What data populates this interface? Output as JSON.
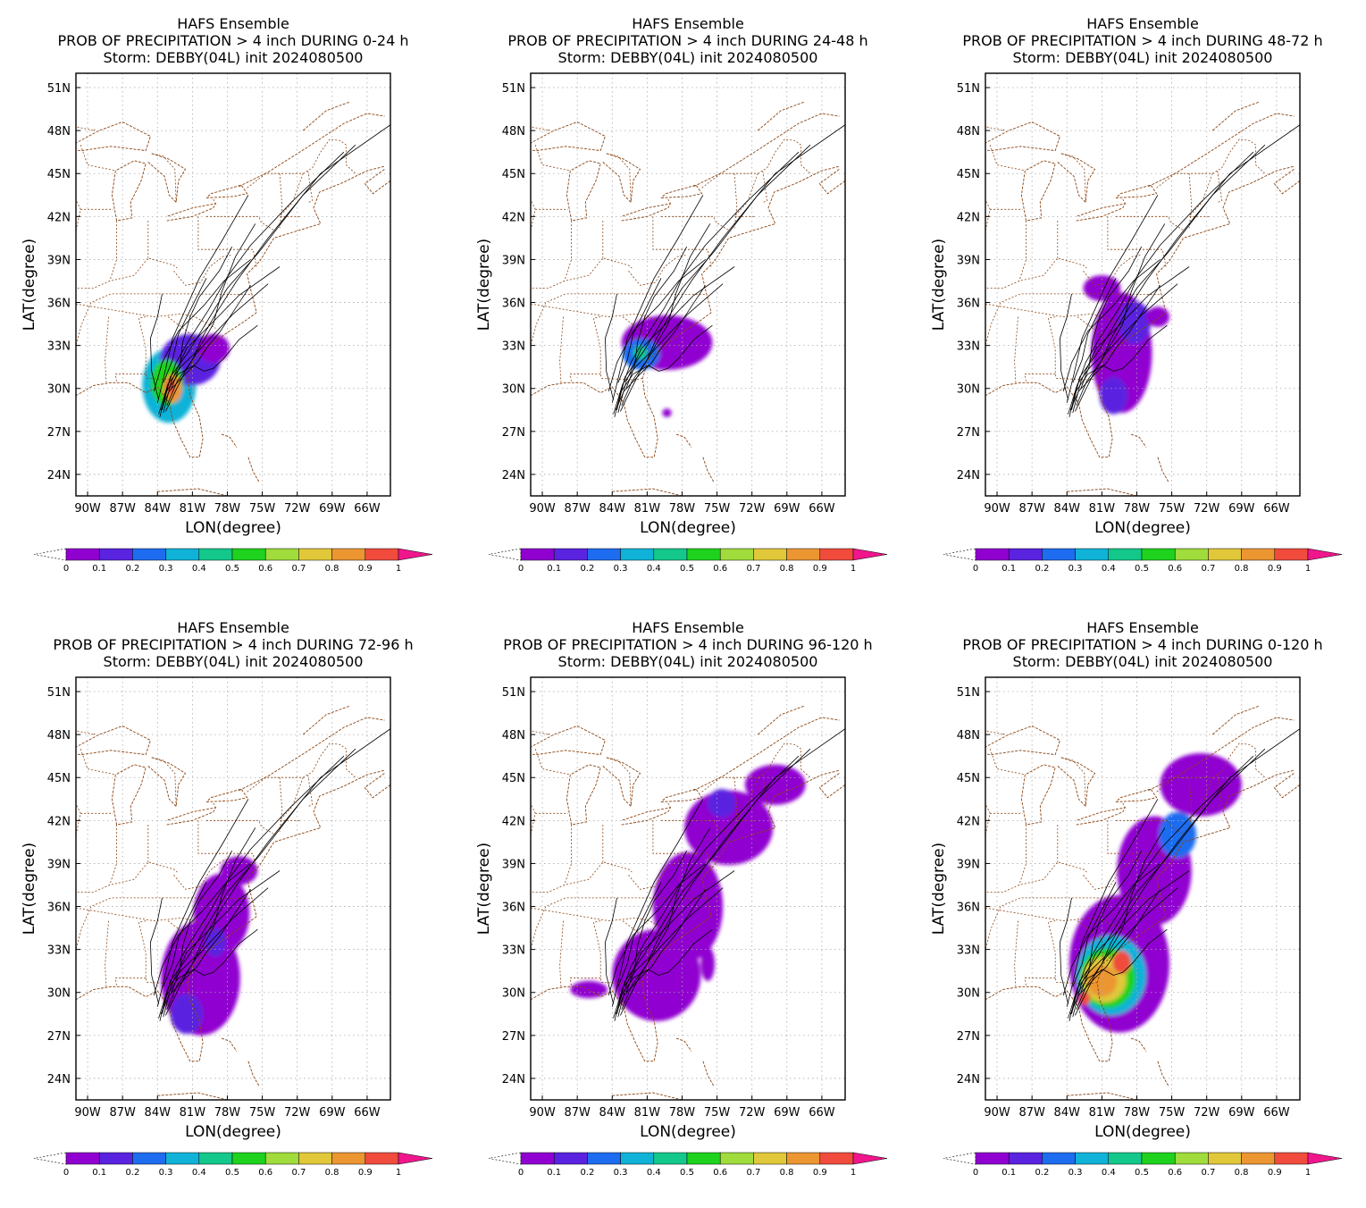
{
  "colors": {
    "bins": [
      "#9000d0",
      "#5a23e0",
      "#1e6cf0",
      "#10b2d8",
      "#14c88c",
      "#1ed21e",
      "#a0dc3c",
      "#e0c83a",
      "#ec9632",
      "#f04b3c",
      "#f0168c"
    ],
    "border": "#8b4513",
    "track": "#000000",
    "grid": "#aaaaaa"
  },
  "axes": {
    "xlabel": "LON(degree)",
    "ylabel": "LAT(degree)",
    "xlim": [
      -91,
      -64
    ],
    "ylim": [
      22.5,
      52
    ],
    "xticks": [
      -90,
      -87,
      -84,
      -81,
      -78,
      -75,
      -72,
      -69,
      -66
    ],
    "xtick_labels": [
      "90W",
      "87W",
      "84W",
      "81W",
      "78W",
      "75W",
      "72W",
      "69W",
      "66W"
    ],
    "yticks": [
      24,
      27,
      30,
      33,
      36,
      39,
      42,
      45,
      48,
      51
    ],
    "ytick_labels": [
      "24N",
      "27N",
      "30N",
      "33N",
      "36N",
      "39N",
      "42N",
      "45N",
      "48N",
      "51N"
    ],
    "grid": true
  },
  "colorbar": {
    "labels": [
      "0",
      "0.1",
      "0.2",
      "0.3",
      "0.4",
      "0.5",
      "0.6",
      "0.7",
      "0.8",
      "0.9",
      "1"
    ]
  },
  "chart_data": [
    {
      "type": "heatmap",
      "title": "HAFS Ensemble",
      "subtitle": "PROB OF PRECIPITATION > 4 inch DURING  0-24 h",
      "storm": "Storm: DEBBY(04L) init 2024080500",
      "blobs": [
        {
          "lon": -83.0,
          "lat": 30.2,
          "rx": 2.3,
          "ry": 2.6,
          "value": 0.3
        },
        {
          "lon": -81.2,
          "lat": 32.0,
          "rx": 2.6,
          "ry": 1.8,
          "value": 0.1
        },
        {
          "lon": -83.2,
          "lat": 30.4,
          "rx": 1.4,
          "ry": 1.6,
          "value": 0.5
        },
        {
          "lon": -82.7,
          "lat": 30.0,
          "rx": 0.8,
          "ry": 1.0,
          "value": 0.8
        },
        {
          "lon": -82.9,
          "lat": 30.1,
          "rx": 0.4,
          "ry": 0.5,
          "value": 0.9
        },
        {
          "lon": -79.2,
          "lat": 32.8,
          "rx": 1.4,
          "ry": 1.0,
          "value": 0.05
        }
      ]
    },
    {
      "type": "heatmap",
      "title": "HAFS Ensemble",
      "subtitle": "PROB OF PRECIPITATION > 4 inch DURING 24-48 h",
      "storm": "Storm: DEBBY(04L) init 2024080500",
      "blobs": [
        {
          "lon": -79.3,
          "lat": 33.2,
          "rx": 3.9,
          "ry": 1.9,
          "value": 0.05
        },
        {
          "lon": -81.5,
          "lat": 32.4,
          "rx": 1.6,
          "ry": 1.1,
          "value": 0.2
        },
        {
          "lon": -81.6,
          "lat": 32.5,
          "rx": 0.6,
          "ry": 0.5,
          "value": 0.4
        },
        {
          "lon": -79.3,
          "lat": 28.3,
          "rx": 0.4,
          "ry": 0.3,
          "value": 0.05
        }
      ]
    },
    {
      "type": "heatmap",
      "title": "HAFS Ensemble",
      "subtitle": "PROB OF PRECIPITATION > 4 inch DURING 48-72 h",
      "storm": "Storm: DEBBY(04L) init 2024080500",
      "blobs": [
        {
          "lon": -79.3,
          "lat": 32.5,
          "rx": 2.6,
          "ry": 4.2,
          "value": 0.05
        },
        {
          "lon": -78.2,
          "lat": 34.6,
          "rx": 1.4,
          "ry": 1.5,
          "value": 0.15
        },
        {
          "lon": -81.0,
          "lat": 37.0,
          "rx": 1.6,
          "ry": 0.9,
          "value": 0.05
        },
        {
          "lon": -80.0,
          "lat": 29.5,
          "rx": 1.2,
          "ry": 1.3,
          "value": 0.15
        },
        {
          "lon": -76.2,
          "lat": 35.0,
          "rx": 1.0,
          "ry": 0.7,
          "value": 0.05
        }
      ]
    },
    {
      "type": "heatmap",
      "title": "HAFS Ensemble",
      "subtitle": "PROB OF PRECIPITATION > 4 inch DURING 72-96 h",
      "storm": "Storm: DEBBY(04L) init 2024080500",
      "blobs": [
        {
          "lon": -80.3,
          "lat": 31.0,
          "rx": 3.4,
          "ry": 4.0,
          "value": 0.05
        },
        {
          "lon": -78.5,
          "lat": 35.5,
          "rx": 2.4,
          "ry": 2.8,
          "value": 0.05
        },
        {
          "lon": -77.0,
          "lat": 38.5,
          "rx": 1.6,
          "ry": 1.0,
          "value": 0.05
        },
        {
          "lon": -81.5,
          "lat": 28.5,
          "rx": 1.4,
          "ry": 1.4,
          "value": 0.15
        },
        {
          "lon": -79.0,
          "lat": 33.5,
          "rx": 0.9,
          "ry": 1.0,
          "value": 0.15
        }
      ]
    },
    {
      "type": "heatmap",
      "title": "HAFS Ensemble",
      "subtitle": "PROB OF PRECIPITATION > 4 inch DURING 96-120 h",
      "storm": "Storm: DEBBY(04L) init 2024080500",
      "blobs": [
        {
          "lon": -80.2,
          "lat": 31.2,
          "rx": 3.8,
          "ry": 3.2,
          "value": 0.05
        },
        {
          "lon": -77.5,
          "lat": 36.0,
          "rx": 3.0,
          "ry": 3.8,
          "value": 0.05
        },
        {
          "lon": -74.0,
          "lat": 41.5,
          "rx": 3.8,
          "ry": 2.6,
          "value": 0.05
        },
        {
          "lon": -70.0,
          "lat": 44.5,
          "rx": 2.6,
          "ry": 1.4,
          "value": 0.05
        },
        {
          "lon": -74.6,
          "lat": 43.2,
          "rx": 1.2,
          "ry": 1.0,
          "value": 0.15
        },
        {
          "lon": -86.0,
          "lat": 30.2,
          "rx": 1.6,
          "ry": 0.6,
          "value": 0.05
        },
        {
          "lon": -75.8,
          "lat": 32.0,
          "rx": 0.6,
          "ry": 1.2,
          "value": 0.05
        }
      ]
    },
    {
      "type": "heatmap",
      "title": "HAFS Ensemble",
      "subtitle": "PROB OF PRECIPITATION > 4 inch DURING 0-120 h",
      "storm": "Storm: DEBBY(04L) init 2024080500",
      "blobs": [
        {
          "lon": -79.5,
          "lat": 32.0,
          "rx": 4.3,
          "ry": 4.8,
          "value": 0.05
        },
        {
          "lon": -76.5,
          "lat": 38.5,
          "rx": 3.2,
          "ry": 3.8,
          "value": 0.05
        },
        {
          "lon": -72.5,
          "lat": 44.5,
          "rx": 3.5,
          "ry": 2.2,
          "value": 0.05
        },
        {
          "lon": -74.5,
          "lat": 41.0,
          "rx": 1.6,
          "ry": 1.6,
          "value": 0.2
        },
        {
          "lon": -80.2,
          "lat": 31.2,
          "rx": 3.0,
          "ry": 2.8,
          "value": 0.3
        },
        {
          "lon": -80.5,
          "lat": 31.0,
          "rx": 2.4,
          "ry": 2.1,
          "value": 0.5
        },
        {
          "lon": -80.8,
          "lat": 30.9,
          "rx": 1.9,
          "ry": 1.6,
          "value": 0.75
        },
        {
          "lon": -81.0,
          "lat": 30.8,
          "rx": 1.3,
          "ry": 1.1,
          "value": 0.85
        },
        {
          "lon": -79.3,
          "lat": 32.1,
          "rx": 0.8,
          "ry": 0.8,
          "value": 0.9
        },
        {
          "lon": -82.5,
          "lat": 29.6,
          "rx": 0.5,
          "ry": 0.5,
          "value": 0.9
        }
      ]
    }
  ]
}
